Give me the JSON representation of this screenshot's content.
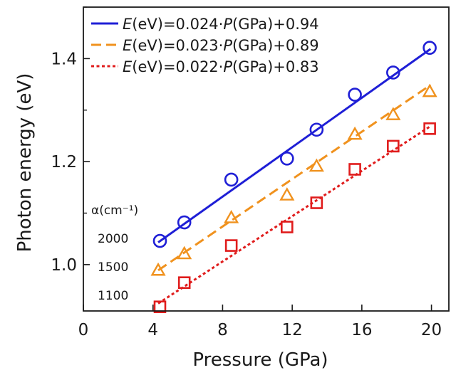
{
  "chart_data": {
    "type": "scatter",
    "title": "",
    "xlabel": "Pressure (GPa)",
    "ylabel": "Photon energy (eV)",
    "xlim": [
      0,
      21
    ],
    "ylim": [
      0.91,
      1.5
    ],
    "xticks": [
      0,
      4,
      8,
      12,
      16,
      20
    ],
    "yticks": [
      1.0,
      1.2,
      1.4
    ],
    "yminor": [
      0.9,
      1.1,
      1.3,
      1.5
    ],
    "grid": false,
    "legend_position": "top-left",
    "series": [
      {
        "name": "α = 2000 cm⁻¹",
        "marker": "circle",
        "color": "#1f1fd6",
        "x": [
          4.4,
          5.8,
          8.5,
          11.7,
          13.4,
          15.6,
          17.8,
          19.9
        ],
        "y": [
          1.046,
          1.082,
          1.165,
          1.206,
          1.262,
          1.33,
          1.373,
          1.421
        ],
        "fit": {
          "label_prefix": "E",
          "label_body": "(eV)=0.024·",
          "label_var": "P",
          "label_tail": "(GPa)+0.94",
          "slope": 0.024,
          "intercept": 0.94,
          "line": "solid"
        }
      },
      {
        "name": "α = 1500 cm⁻¹",
        "marker": "triangle",
        "color": "#f0921e",
        "x": [
          4.3,
          5.8,
          8.5,
          11.7,
          13.4,
          15.6,
          17.8,
          19.9
        ],
        "y": [
          0.988,
          1.02,
          1.09,
          1.134,
          1.19,
          1.252,
          1.29,
          1.335
        ],
        "fit": {
          "label_prefix": "E",
          "label_body": "(eV)=0.023·",
          "label_var": "P",
          "label_tail": "(GPa)+0.89",
          "slope": 0.023,
          "intercept": 0.89,
          "line": "dashed"
        }
      },
      {
        "name": "α = 1100 cm⁻¹",
        "marker": "square",
        "color": "#e01c1c",
        "x": [
          4.4,
          5.8,
          8.5,
          11.7,
          13.4,
          15.6,
          17.8,
          19.9
        ],
        "y": [
          0.918,
          0.965,
          1.037,
          1.073,
          1.12,
          1.185,
          1.23,
          1.264
        ],
        "fit": {
          "label_prefix": "E",
          "label_body": "(eV)=0.022·",
          "label_var": "P",
          "label_tail": "(GPa)+0.83",
          "slope": 0.022,
          "intercept": 0.83,
          "line": "dotted"
        }
      }
    ],
    "annotations": {
      "alpha_title": "α(cm⁻¹)",
      "alpha_values": [
        "2000",
        "1500",
        "1100"
      ]
    }
  }
}
